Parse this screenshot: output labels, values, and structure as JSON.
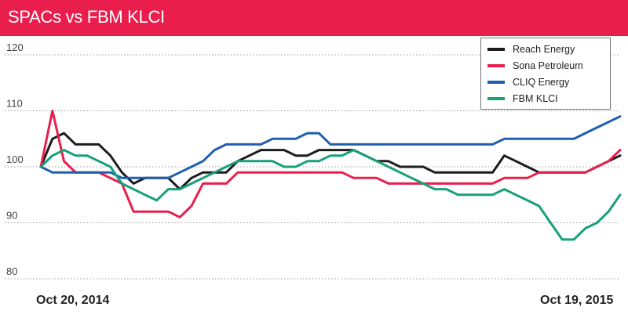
{
  "title": "SPACs vs FBM KLCI",
  "colors": {
    "title_bar": "#E91E4D",
    "grid": "#9a9a9a",
    "axis_text": "#444444"
  },
  "chart_data": {
    "type": "line",
    "title": "SPACs vs FBM KLCI",
    "xlabel": "",
    "ylabel": "",
    "ylim": [
      80,
      122
    ],
    "yticks": [
      80,
      90,
      100,
      110,
      120
    ],
    "grid": "horizontal dotted",
    "legend_position": "top-right",
    "x_start_label": "Oct 20, 2014",
    "x_end_label": "Oct 19, 2015",
    "n_points": 51,
    "series": [
      {
        "name": "Reach Energy",
        "color": "#1c1c1c",
        "values": [
          100,
          105,
          106,
          104,
          104,
          104,
          102,
          99,
          97,
          98,
          98,
          98,
          96,
          98,
          99,
          99,
          99,
          101,
          102,
          103,
          103,
          103,
          102,
          102,
          103,
          103,
          103,
          103,
          102,
          101,
          101,
          100,
          100,
          100,
          99,
          99,
          99,
          99,
          99,
          99,
          102,
          101,
          100,
          99,
          99,
          99,
          99,
          99,
          100,
          101,
          102
        ]
      },
      {
        "name": "Sona Petroleum",
        "color": "#E91E4D",
        "values": [
          100,
          110,
          101,
          99,
          99,
          99,
          98,
          97,
          92,
          92,
          92,
          92,
          91,
          93,
          97,
          97,
          97,
          99,
          99,
          99,
          99,
          99,
          99,
          99,
          99,
          99,
          99,
          98,
          98,
          98,
          97,
          97,
          97,
          97,
          97,
          97,
          97,
          97,
          97,
          97,
          98,
          98,
          98,
          99,
          99,
          99,
          99,
          99,
          100,
          101,
          103
        ]
      },
      {
        "name": "CLIQ Energy",
        "color": "#1F5FAF",
        "values": [
          100,
          99,
          99,
          99,
          99,
          99,
          99,
          98,
          98,
          98,
          98,
          98,
          99,
          100,
          101,
          103,
          104,
          104,
          104,
          104,
          105,
          105,
          105,
          106,
          106,
          104,
          104,
          104,
          104,
          104,
          104,
          104,
          104,
          104,
          104,
          104,
          104,
          104,
          104,
          104,
          105,
          105,
          105,
          105,
          105,
          105,
          105,
          106,
          107,
          108,
          109
        ]
      },
      {
        "name": "FBM KLCI",
        "color": "#17A07A",
        "values": [
          100,
          102,
          103,
          102,
          102,
          101,
          100,
          97,
          96,
          95,
          94,
          96,
          96,
          97,
          98,
          99,
          100,
          101,
          101,
          101,
          101,
          100,
          100,
          101,
          101,
          102,
          102,
          103,
          102,
          101,
          100,
          99,
          98,
          97,
          96,
          96,
          95,
          95,
          95,
          95,
          96,
          95,
          94,
          93,
          90,
          87,
          87,
          89,
          90,
          92,
          95
        ]
      }
    ]
  }
}
